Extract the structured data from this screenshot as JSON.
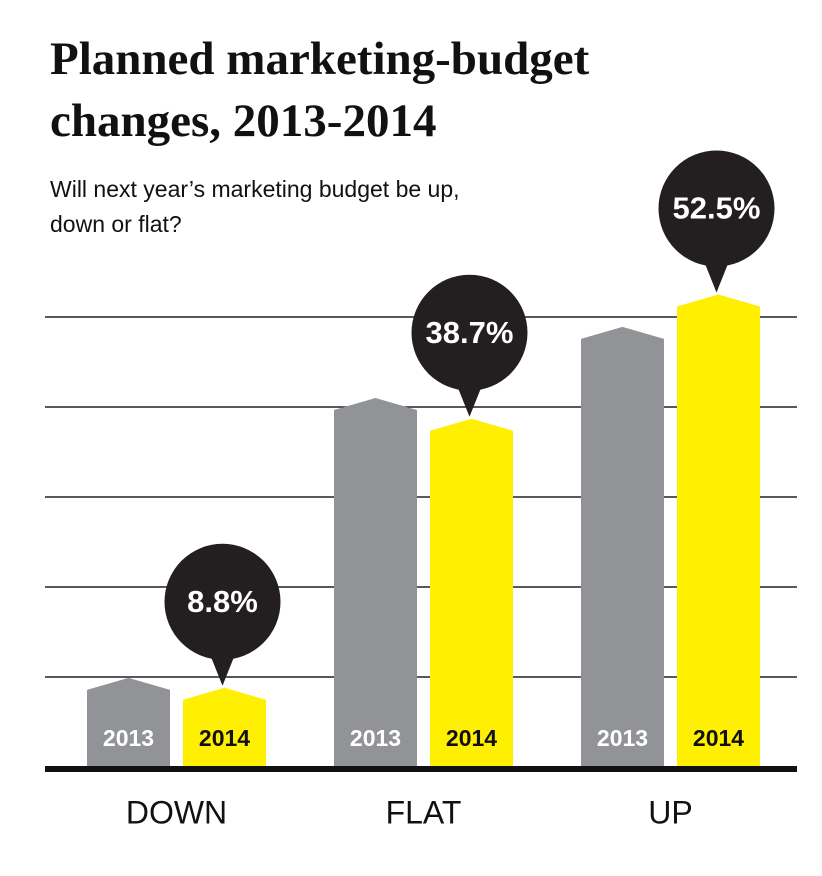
{
  "chart_data": {
    "type": "bar",
    "title": "Planned marketing-budget changes, 2013-2014",
    "subtitle": "Will next year’s marketing budget be up, down or flat?",
    "categories": [
      "DOWN",
      "FLAT",
      "UP"
    ],
    "series": [
      {
        "name": "2013",
        "color": "#929396",
        "values": [
          9.9,
          41,
          48.9
        ]
      },
      {
        "name": "2014",
        "color": "#ffef00",
        "values": [
          8.8,
          38.7,
          52.5
        ],
        "value_labels": [
          "8.8%",
          "38.7%",
          "52.5%"
        ]
      }
    ],
    "ylim": [
      0,
      55
    ],
    "yticks": [
      10,
      20,
      30,
      40,
      50
    ],
    "grid": true
  }
}
